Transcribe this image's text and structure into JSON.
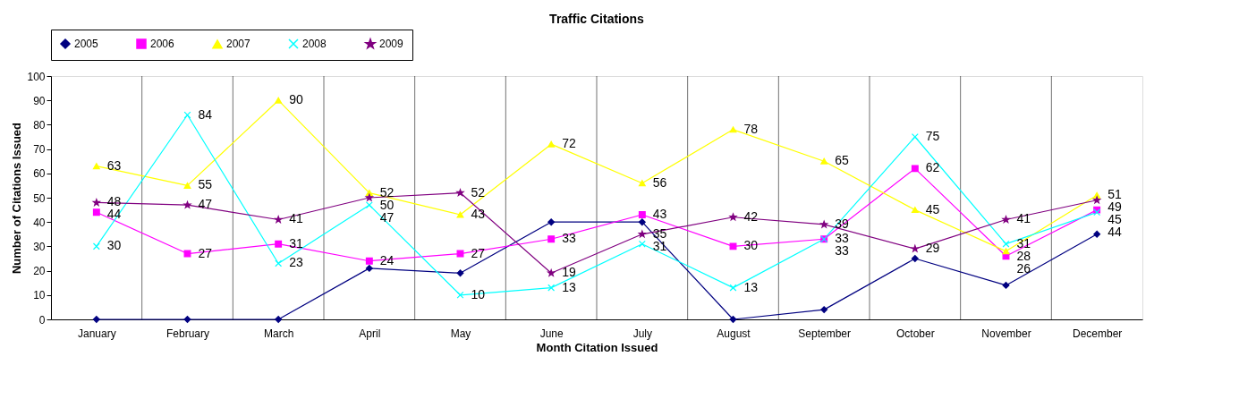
{
  "chart_data": {
    "type": "line",
    "title": "Traffic Citations",
    "xlabel": "Month Citation Issued",
    "ylabel": "Number of Citations Issued",
    "categories": [
      "January",
      "February",
      "March",
      "April",
      "May",
      "June",
      "July",
      "August",
      "September",
      "October",
      "November",
      "December"
    ],
    "ylim": [
      0,
      100
    ],
    "yticks": [
      0,
      10,
      20,
      30,
      40,
      50,
      60,
      70,
      80,
      90,
      100
    ],
    "grid": "x",
    "legend": "top",
    "series": [
      {
        "name": "2005",
        "color": "#000080",
        "marker": "diamond",
        "values": [
          0,
          0,
          0,
          21,
          19,
          40,
          40,
          0,
          4,
          25,
          14,
          35
        ]
      },
      {
        "name": "2006",
        "color": "#ff00ff",
        "marker": "square",
        "values": [
          44,
          27,
          31,
          24,
          27,
          33,
          43,
          30,
          33,
          62,
          26,
          45
        ],
        "value_labels": [
          "44",
          "27",
          "31",
          "24",
          "27",
          "33",
          "43",
          "30",
          "33",
          "62",
          "26",
          "45"
        ]
      },
      {
        "name": "2007",
        "color": "#ffff00",
        "marker": "triangle",
        "values": [
          63,
          55,
          90,
          52,
          43,
          72,
          56,
          78,
          65,
          45,
          28,
          51
        ],
        "value_labels": [
          "63",
          "55",
          "90",
          "52",
          "43",
          "72",
          "56",
          "78",
          "65",
          "45",
          "28",
          "51"
        ]
      },
      {
        "name": "2008",
        "color": "#00ffff",
        "marker": "cross",
        "values": [
          30,
          84,
          23,
          47,
          10,
          13,
          31,
          13,
          33,
          75,
          31,
          44
        ],
        "value_labels": [
          "30",
          "84",
          "23",
          "47",
          "10",
          "13",
          "31",
          "13",
          "33",
          "75",
          "31",
          "44"
        ]
      },
      {
        "name": "2009",
        "color": "#800080",
        "marker": "star",
        "values": [
          48,
          47,
          41,
          50,
          52,
          19,
          35,
          42,
          39,
          29,
          41,
          49
        ],
        "value_labels": [
          "48",
          "47",
          "41",
          "50",
          "52",
          "19",
          "35",
          "42",
          "39",
          "29",
          "41",
          "49"
        ]
      }
    ]
  }
}
